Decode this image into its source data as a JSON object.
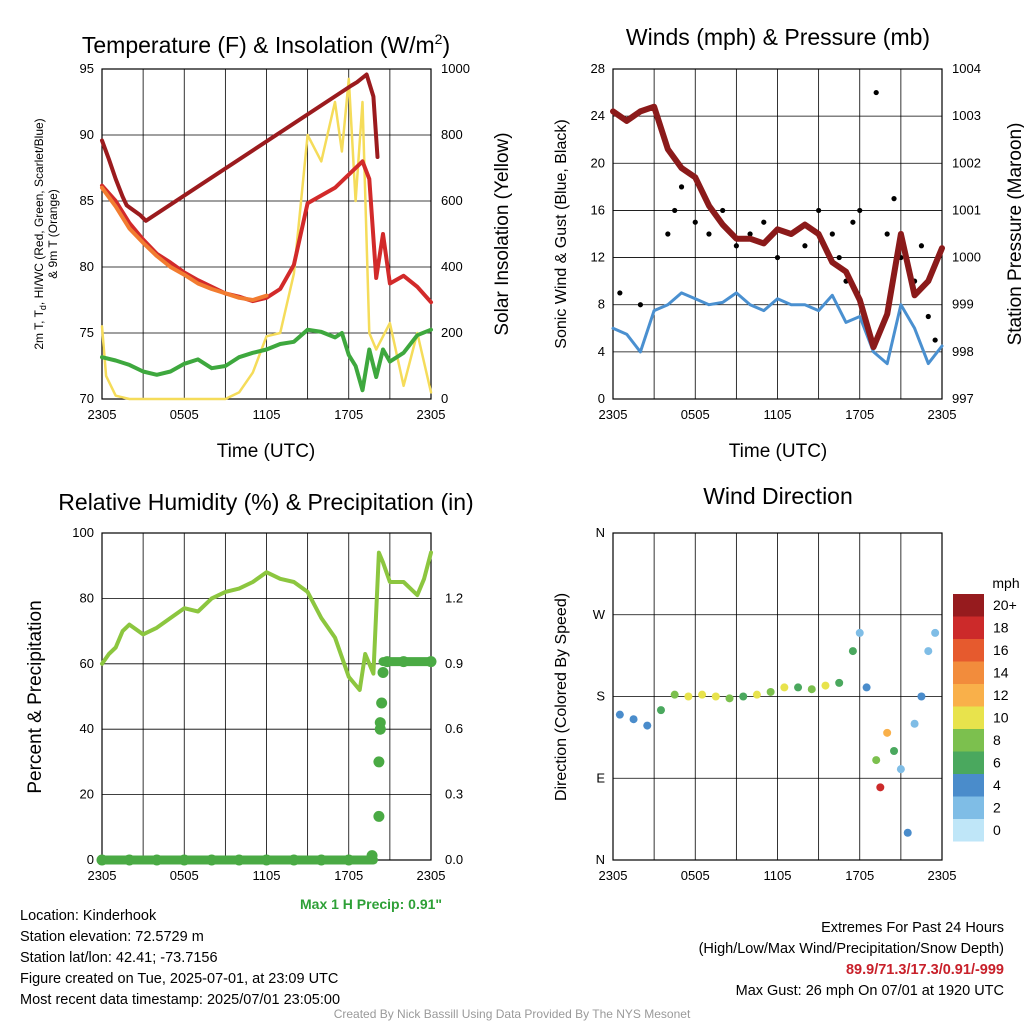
{
  "time_ticks": [
    "2305",
    "0505",
    "1105",
    "1705",
    "2305"
  ],
  "temp_panel": {
    "title": "Temperature (F) & Insolation (W/m",
    "title_sup": "2",
    "title_close": ")",
    "ylabel_left": "2m T, T",
    "ylabel_left_sub": "d",
    "ylabel_left_tail": ", HI/WC (Red, Green, Scarlet/Blue)",
    "ylabel_left_line2": "& 9m T (Orange)",
    "ylabel_right": "Solar Insolation (Yellow)",
    "xlabel": "Time (UTC)",
    "yticks_left": [
      "70",
      "75",
      "80",
      "85",
      "90",
      "95"
    ],
    "yticks_right": [
      "0",
      "200",
      "400",
      "600",
      "800",
      "1000"
    ]
  },
  "wind_panel": {
    "title": "Winds (mph) & Pressure (mb)",
    "ylabel_left": "Sonic Wind & Gust (Blue, Black)",
    "ylabel_right": "Station Pressure (Maroon)",
    "xlabel": "Time (UTC)",
    "yticks_left": [
      "0",
      "4",
      "8",
      "12",
      "16",
      "20",
      "24",
      "28"
    ],
    "yticks_right": [
      "997",
      "998",
      "999",
      "1000",
      "1001",
      "1002",
      "1003",
      "1004"
    ]
  },
  "rh_panel": {
    "title": "Relative Humidity (%) & Precipitation (in)",
    "ylabel_left": "Percent & Precipitation",
    "yticks_left": [
      "0",
      "20",
      "40",
      "60",
      "80",
      "100"
    ],
    "yticks_right": [
      "0.0",
      "0.3",
      "0.6",
      "0.9",
      "1.2"
    ],
    "max_precip": "Max 1 H Precip: 0.91\""
  },
  "dir_panel": {
    "title": "Wind Direction",
    "ylabel_left": "Direction (Colored By Speed)",
    "yticks_left": [
      "N",
      "E",
      "S",
      "W",
      "N"
    ],
    "colorbar_title": "mph",
    "colorbar_labels": [
      "0",
      "2",
      "4",
      "6",
      "8",
      "10",
      "12",
      "14",
      "16",
      "18",
      "20+"
    ],
    "colorbar_colors": [
      "#bfe6f8",
      "#7fbde6",
      "#4a8ccb",
      "#4aa85e",
      "#7cc04e",
      "#e8e34c",
      "#f9b04a",
      "#f28c3c",
      "#e65a2e",
      "#cc2a2a",
      "#961b1e"
    ]
  },
  "info": {
    "location": "Location: Kinderhook",
    "elevation": "Station elevation: 72.5729 m",
    "latlon": "Station lat/lon: 42.41; -73.7156",
    "created": "Figure created on Tue, 2025-07-01, at 23:09 UTC",
    "recent": "Most recent data timestamp: 2025/07/01 23:05:00"
  },
  "extremes": {
    "line1": "Extremes For Past 24 Hours",
    "line2": "(High/Low/Max Wind/Precipitation/Snow Depth)",
    "values": "89.9/71.3/17.3/0.91/-999",
    "gust": "Max Gust: 26 mph On 07/01 at 1920 UTC"
  },
  "credit": "Created By Nick Bassill Using Data Provided By The NYS Mesonet",
  "chart_data": [
    {
      "type": "line",
      "x_unit": "hours since 2305 UTC",
      "xlim": [
        0,
        24
      ],
      "ylim": [
        66,
        96
      ],
      "ylim_right": [
        0,
        1000
      ],
      "series": [
        {
          "color": "#d22a2a",
          "x": [
            0,
            1,
            2,
            3,
            4,
            5,
            6,
            7,
            8,
            9,
            10,
            11,
            12,
            13,
            14,
            15,
            16,
            17,
            18,
            19,
            19.5,
            20,
            20.5,
            21,
            22,
            23,
            24
          ],
          "y": [
            85.4,
            84,
            82,
            80.5,
            79.2,
            78.4,
            77.5,
            76.8,
            76.2,
            75.6,
            75.3,
            74.9,
            75.2,
            76,
            78.2,
            83.8,
            84.5,
            85.2,
            86.4,
            87.6,
            86,
            77,
            81,
            76.5,
            77.2,
            76.2,
            74.8
          ]
        },
        {
          "color": "#f27c30",
          "x": [
            0,
            1,
            2,
            3,
            4,
            5,
            6,
            7,
            8,
            9,
            10,
            11,
            12
          ],
          "y": [
            85.2,
            83.5,
            81.5,
            80.2,
            79,
            78,
            77.3,
            76.5,
            76,
            75.6,
            75.2,
            75,
            75.4
          ]
        },
        {
          "color": "#9b1b1e",
          "x": [
            0,
            0.5,
            1,
            1.5,
            1.8,
            2.8,
            3.2,
            18.2,
            18.6,
            19.3,
            19.8,
            20.1
          ],
          "y": [
            89.5,
            87.8,
            86,
            84.4,
            83.6,
            82.7,
            82.2,
            94.5,
            94.8,
            95.5,
            93.5,
            88
          ]
        },
        {
          "color": "#3ea83e",
          "x": [
            0,
            1,
            2,
            3,
            4,
            5,
            6,
            7,
            8,
            9,
            10,
            11,
            12,
            13,
            14,
            15,
            16,
            17,
            17.5,
            18,
            18.5,
            19,
            19.5,
            20,
            20.5,
            21,
            22,
            23,
            24
          ],
          "y": [
            69.8,
            69.5,
            69.1,
            68.5,
            68.2,
            68.5,
            69.2,
            69.6,
            68.8,
            69,
            69.8,
            70.2,
            70.5,
            71,
            71.2,
            72.3,
            72.1,
            71.6,
            72,
            70,
            69,
            66.8,
            70.5,
            68,
            70.5,
            69.4,
            70.2,
            71.8,
            72.3
          ]
        }
      ],
      "series_right": [
        {
          "color": "#f5dc5a",
          "x": [
            0,
            0.3,
            1,
            2,
            3,
            4,
            5,
            6,
            7,
            8,
            9,
            10,
            11,
            12,
            13,
            14,
            15,
            16,
            17,
            17.5,
            18,
            18.5,
            19,
            19.5,
            20,
            21,
            22,
            23,
            24
          ],
          "y": [
            220,
            70,
            10,
            0,
            0,
            0,
            0,
            0,
            0,
            0,
            0,
            20,
            80,
            190,
            200,
            380,
            800,
            720,
            900,
            750,
            970,
            600,
            900,
            200,
            150,
            230,
            40,
            200,
            20
          ]
        }
      ]
    },
    {
      "type": "line",
      "x_unit": "hours since 2305 UTC",
      "xlim": [
        0,
        24
      ],
      "ylim": [
        0,
        28
      ],
      "ylim_right": [
        997,
        1004
      ],
      "series": [
        {
          "color": "#4a90d0",
          "x": [
            0,
            1,
            2,
            3,
            4,
            5,
            6,
            7,
            8,
            9,
            10,
            11,
            12,
            13,
            14,
            15,
            16,
            17,
            18,
            19,
            20,
            21,
            22,
            23,
            24
          ],
          "y": [
            6,
            5.5,
            4,
            7.5,
            8,
            9,
            8.5,
            8,
            8.2,
            9,
            8,
            7.5,
            8.5,
            8,
            8,
            7.5,
            8.8,
            6.5,
            7,
            4,
            3,
            8,
            6,
            3,
            4.5
          ]
        },
        {
          "color": "#8b1a1a",
          "x": [
            0,
            1,
            2,
            3,
            4,
            5,
            6,
            7,
            8,
            9,
            10,
            11,
            12,
            13,
            14,
            15,
            16,
            17,
            18,
            19,
            20,
            21,
            22,
            23,
            24
          ],
          "y": [
            1003.1,
            1002.9,
            1003.1,
            1003.2,
            1002.3,
            1001.9,
            1001.7,
            1001.1,
            1000.7,
            1000.4,
            1000.4,
            1000.3,
            1000.6,
            1000.5,
            1000.7,
            1000.5,
            999.9,
            999.7,
            999.1,
            998.1,
            998.8,
            1000.5,
            999.2,
            999.5,
            1000.2
          ]
        }
      ],
      "scatter": {
        "color": "#000000",
        "x": [
          0.5,
          2,
          4,
          4.5,
          5,
          6,
          7,
          8,
          9,
          10,
          11,
          12,
          13,
          14,
          15,
          16,
          16.5,
          17,
          17.5,
          18,
          19.2,
          20,
          20.5,
          21,
          22,
          22.5,
          23,
          23.5
        ],
        "y": [
          9,
          8,
          14,
          16,
          18,
          15,
          14,
          16,
          13,
          14,
          15,
          12,
          14,
          13,
          16,
          14,
          12,
          10,
          15,
          16,
          26,
          14,
          17,
          12,
          10,
          13,
          7,
          5
        ]
      }
    },
    {
      "type": "line",
      "x_unit": "hours since 2305 UTC",
      "xlim": [
        0,
        24
      ],
      "ylim": [
        0,
        100
      ],
      "ylim_right": [
        0,
        1.5
      ],
      "series": [
        {
          "color": "#8cc63f",
          "x": [
            0,
            0.5,
            1,
            1.5,
            2,
            3,
            4,
            5,
            6,
            7,
            8,
            9,
            10,
            11,
            12,
            13,
            14,
            15,
            16,
            17,
            18,
            18.8,
            19.2,
            19.8,
            20.2,
            20.5,
            21,
            22,
            23,
            23.5,
            24
          ],
          "y": [
            60,
            63,
            65,
            70,
            72,
            69,
            71,
            74,
            77,
            76,
            80,
            82,
            83,
            85,
            88,
            86,
            85,
            82,
            74,
            68,
            56,
            52,
            63,
            57,
            94,
            91,
            85,
            85,
            81,
            86,
            94
          ]
        }
      ],
      "scatter_right": {
        "color": "#4aaa44",
        "x": [
          0,
          2,
          4,
          6,
          8,
          10,
          12,
          14,
          16,
          18,
          19.7,
          20.2,
          20.2,
          20.3,
          20.3,
          20.4,
          20.5,
          20.8,
          22,
          24
        ],
        "y": [
          0,
          0,
          0,
          0,
          0,
          0,
          0,
          0,
          0,
          0,
          0.02,
          0.2,
          0.45,
          0.6,
          0.63,
          0.72,
          0.86,
          0.91,
          0.91,
          0.91
        ]
      }
    },
    {
      "type": "scatter",
      "x_unit": "hours since 2305 UTC",
      "xlim": [
        0,
        24
      ],
      "ylim": [
        0,
        360
      ],
      "points": [
        {
          "x": 0.5,
          "y": 160,
          "mph": 4
        },
        {
          "x": 1.5,
          "y": 155,
          "mph": 4
        },
        {
          "x": 2.5,
          "y": 148,
          "mph": 4
        },
        {
          "x": 3.5,
          "y": 165,
          "mph": 6
        },
        {
          "x": 4.5,
          "y": 182,
          "mph": 8
        },
        {
          "x": 5.5,
          "y": 180,
          "mph": 10
        },
        {
          "x": 6.5,
          "y": 182,
          "mph": 10
        },
        {
          "x": 7.5,
          "y": 180,
          "mph": 10
        },
        {
          "x": 8.5,
          "y": 178,
          "mph": 8
        },
        {
          "x": 9.5,
          "y": 180,
          "mph": 6
        },
        {
          "x": 10.5,
          "y": 182,
          "mph": 10
        },
        {
          "x": 11.5,
          "y": 185,
          "mph": 8
        },
        {
          "x": 12.5,
          "y": 190,
          "mph": 10
        },
        {
          "x": 13.5,
          "y": 190,
          "mph": 6
        },
        {
          "x": 14.5,
          "y": 188,
          "mph": 8
        },
        {
          "x": 15.5,
          "y": 192,
          "mph": 10
        },
        {
          "x": 16.5,
          "y": 195,
          "mph": 6
        },
        {
          "x": 17.5,
          "y": 230,
          "mph": 6
        },
        {
          "x": 18,
          "y": 250,
          "mph": 2
        },
        {
          "x": 18.5,
          "y": 190,
          "mph": 4
        },
        {
          "x": 19.2,
          "y": 110,
          "mph": 8
        },
        {
          "x": 19.5,
          "y": 80,
          "mph": 18
        },
        {
          "x": 20,
          "y": 140,
          "mph": 12
        },
        {
          "x": 20.5,
          "y": 120,
          "mph": 6
        },
        {
          "x": 21,
          "y": 100,
          "mph": 2
        },
        {
          "x": 21.5,
          "y": 30,
          "mph": 4
        },
        {
          "x": 22,
          "y": 150,
          "mph": 2
        },
        {
          "x": 22.5,
          "y": 180,
          "mph": 4
        },
        {
          "x": 23,
          "y": 230,
          "mph": 2
        },
        {
          "x": 23.5,
          "y": 250,
          "mph": 2
        }
      ]
    }
  ]
}
